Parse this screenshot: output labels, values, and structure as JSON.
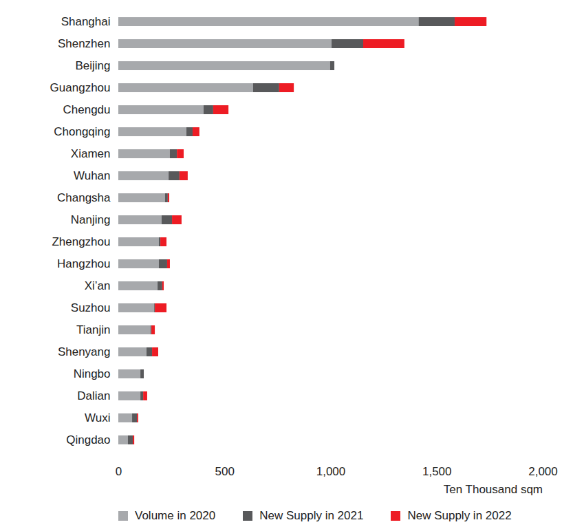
{
  "chart_data": {
    "type": "bar",
    "orientation": "horizontal",
    "stacked": true,
    "grid": false,
    "legend": "bottom",
    "xlabel": "Ten Thousand sqm",
    "categories": [
      "Shanghai",
      "Shenzhen",
      "Beijing",
      "Guangzhou",
      "Chengdu",
      "Chongqing",
      "Xiamen",
      "Wuhan",
      "Changsha",
      "Nanjing",
      "Zhengzhou",
      "Hangzhou",
      "Xi’an",
      "Suzhou",
      "Tianjin",
      "Shenyang",
      "Ningbo",
      "Dalian",
      "Wuxi",
      "Qingdao"
    ],
    "series": [
      {
        "name": "Volume in 2020",
        "color": "#a7a9ac",
        "values": [
          1415,
          1005,
          998,
          635,
          402,
          321,
          243,
          237,
          220,
          204,
          191,
          191,
          185,
          169,
          152,
          133,
          104,
          104,
          65,
          45
        ]
      },
      {
        "name": "New Supply in 2021",
        "color": "#58595b",
        "values": [
          170,
          149,
          20,
          123,
          45,
          29,
          33,
          51,
          13,
          49,
          7,
          39,
          22,
          3,
          4,
          26,
          16,
          13,
          23,
          23
        ]
      },
      {
        "name": "New Supply in 2022",
        "color": "#ed1c24",
        "values": [
          150,
          194,
          0,
          69,
          72,
          32,
          32,
          39,
          7,
          45,
          29,
          13,
          7,
          55,
          16,
          29,
          0,
          19,
          6,
          7
        ]
      }
    ],
    "xlim": [
      0,
      2000
    ],
    "xticks": [
      0,
      500,
      {
        "value": 1000,
        "label": "1,000"
      },
      {
        "value": 1500,
        "label": "1,500"
      },
      {
        "value": 2000,
        "label": "2,000"
      }
    ]
  }
}
